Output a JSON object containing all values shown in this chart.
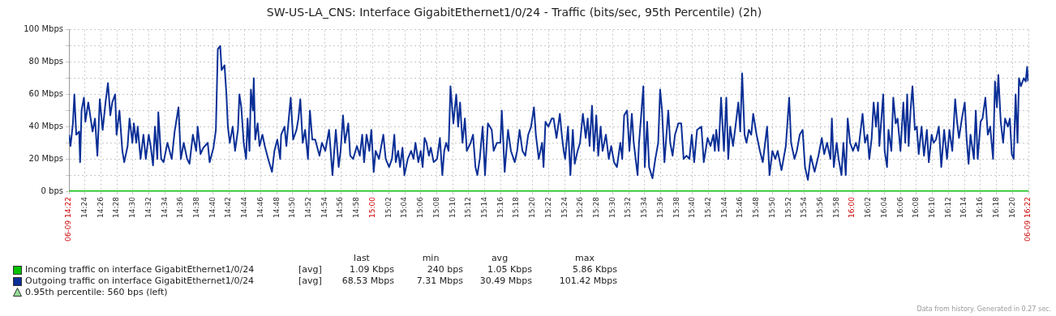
{
  "chart_data": {
    "type": "line",
    "title": "SW-US-LA_CNS: Interface GigabitEthernet1/0/24 - Traffic (bits/sec, 95th Percentile) (2h)",
    "xlim": [
      14.3667,
      16.3667
    ],
    "xticks": [
      {
        "value": 14.3667,
        "label": "06-09 14:22"
      },
      {
        "value": 14.4,
        "label": "14:24"
      },
      {
        "value": 14.4333,
        "label": "14:26"
      },
      {
        "value": 14.4667,
        "label": "14:28"
      },
      {
        "value": 14.5,
        "label": "14:30"
      },
      {
        "value": 14.5333,
        "label": "14:32"
      },
      {
        "value": 14.5667,
        "label": "14:34"
      },
      {
        "value": 14.6,
        "label": "14:36"
      },
      {
        "value": 14.6333,
        "label": "14:38"
      },
      {
        "value": 14.6667,
        "label": "14:40"
      },
      {
        "value": 14.7,
        "label": "14:42"
      },
      {
        "value": 14.7333,
        "label": "14:44"
      },
      {
        "value": 14.7667,
        "label": "14:46"
      },
      {
        "value": 14.8,
        "label": "14:48"
      },
      {
        "value": 14.8333,
        "label": "14:50"
      },
      {
        "value": 14.8667,
        "label": "14:52"
      },
      {
        "value": 14.9,
        "label": "14:54"
      },
      {
        "value": 14.9333,
        "label": "14:56"
      },
      {
        "value": 14.9667,
        "label": "14:58"
      },
      {
        "value": 15,
        "label": "15:00"
      },
      {
        "value": 15.0333,
        "label": "15:02"
      },
      {
        "value": 15.0667,
        "label": "15:04"
      },
      {
        "value": 15.1,
        "label": "15:06"
      },
      {
        "value": 15.1333,
        "label": "15:08"
      },
      {
        "value": 15.1667,
        "label": "15:10"
      },
      {
        "value": 15.2,
        "label": "15:12"
      },
      {
        "value": 15.2333,
        "label": "15:14"
      },
      {
        "value": 15.2667,
        "label": "15:16"
      },
      {
        "value": 15.3,
        "label": "15:18"
      },
      {
        "value": 15.3333,
        "label": "15:20"
      },
      {
        "value": 15.3667,
        "label": "15:22"
      },
      {
        "value": 15.4,
        "label": "15:24"
      },
      {
        "value": 15.4333,
        "label": "15:26"
      },
      {
        "value": 15.4667,
        "label": "15:28"
      },
      {
        "value": 15.5,
        "label": "15:30"
      },
      {
        "value": 15.5333,
        "label": "15:32"
      },
      {
        "value": 15.5667,
        "label": "15:34"
      },
      {
        "value": 15.6,
        "label": "15:36"
      },
      {
        "value": 15.6333,
        "label": "15:38"
      },
      {
        "value": 15.6667,
        "label": "15:40"
      },
      {
        "value": 15.7,
        "label": "15:42"
      },
      {
        "value": 15.7333,
        "label": "15:44"
      },
      {
        "value": 15.7667,
        "label": "15:46"
      },
      {
        "value": 15.8,
        "label": "15:48"
      },
      {
        "value": 15.8333,
        "label": "15:50"
      },
      {
        "value": 15.8667,
        "label": "15:52"
      },
      {
        "value": 15.9,
        "label": "15:54"
      },
      {
        "value": 15.9333,
        "label": "15:56"
      },
      {
        "value": 15.9667,
        "label": "15:58"
      },
      {
        "value": 16,
        "label": "16:00"
      },
      {
        "value": 16.0333,
        "label": "16:02"
      },
      {
        "value": 16.0667,
        "label": "16:04"
      },
      {
        "value": 16.1,
        "label": "16:06"
      },
      {
        "value": 16.1333,
        "label": "16:08"
      },
      {
        "value": 16.1667,
        "label": "16:10"
      },
      {
        "value": 16.2,
        "label": "16:12"
      },
      {
        "value": 16.2333,
        "label": "16:14"
      },
      {
        "value": 16.2667,
        "label": "16:16"
      },
      {
        "value": 16.3,
        "label": "16:18"
      },
      {
        "value": 16.3333,
        "label": "16:20"
      },
      {
        "value": 16.3667,
        "label": "06-09 16:22"
      }
    ],
    "ylim": [
      0,
      100
    ],
    "yticks": [
      {
        "value": 0,
        "label": "0 bps"
      },
      {
        "value": 10,
        "label": null
      },
      {
        "value": 20,
        "label": "20 Mbps"
      },
      {
        "value": 30,
        "label": null
      },
      {
        "value": 40,
        "label": "40 Mbps"
      },
      {
        "value": 50,
        "label": null
      },
      {
        "value": 60,
        "label": "60 Mbps"
      },
      {
        "value": 70,
        "label": null
      },
      {
        "value": 80,
        "label": "80 Mbps"
      },
      {
        "value": 90,
        "label": null
      },
      {
        "value": 100,
        "label": "100 Mbps"
      }
    ],
    "grid": true,
    "legend": "bottom",
    "series": [
      {
        "name": "Incoming traffic on interface GigabitEthernet1/0/24",
        "color": "#00c000",
        "x": [
          14.3667,
          16.3667
        ],
        "values": [
          0,
          0
        ]
      },
      {
        "name": "Outgoing traffic on interface GigabitEthernet1/0/24",
        "color": "#0b2f96",
        "x": [
          14.367,
          14.37,
          14.375,
          14.378,
          14.382,
          14.388,
          14.39,
          14.393,
          14.398,
          14.401,
          14.407,
          14.412,
          14.416,
          14.421,
          14.426,
          14.431,
          14.437,
          14.443,
          14.448,
          14.453,
          14.457,
          14.463,
          14.466,
          14.472,
          14.478,
          14.482,
          14.489,
          14.493,
          14.499,
          14.502,
          14.507,
          14.51,
          14.516,
          14.522,
          14.527,
          14.533,
          14.537,
          14.542,
          14.546,
          14.551,
          14.553,
          14.559,
          14.564,
          14.572,
          14.581,
          14.587,
          14.595,
          14.6,
          14.606,
          14.613,
          14.618,
          14.625,
          14.632,
          14.635,
          14.641,
          14.647,
          14.656,
          14.66,
          14.668,
          14.673,
          14.677,
          14.682,
          14.685,
          14.691,
          14.695,
          14.698,
          14.702,
          14.708,
          14.713,
          14.719,
          14.722,
          14.726,
          14.731,
          14.736,
          14.739,
          14.743,
          14.746,
          14.75,
          14.752,
          14.755,
          14.76,
          14.764,
          14.77,
          14.775,
          14.782,
          14.79,
          14.795,
          14.801,
          14.807,
          14.809,
          14.816,
          14.82,
          14.824,
          14.829,
          14.834,
          14.841,
          14.845,
          14.849,
          14.854,
          14.859,
          14.865,
          14.869,
          14.874,
          14.88,
          14.889,
          14.894,
          14.901,
          14.909,
          14.916,
          14.923,
          14.929,
          14.933,
          14.938,
          14.942,
          14.949,
          14.953,
          14.959,
          14.967,
          14.973,
          14.978,
          14.982,
          14.987,
          14.993,
          14.997,
          15.002,
          15.006,
          15.013,
          15.022,
          15.027,
          15.034,
          15.04,
          15.045,
          15.048,
          15.053,
          15.057,
          15.062,
          15.066,
          15.073,
          15.08,
          15.085,
          15.089,
          15.095,
          15.1,
          15.104,
          15.108,
          15.112,
          15.117,
          15.121,
          15.127,
          15.134,
          15.14,
          15.145,
          15.149,
          15.153,
          15.158,
          15.162,
          15.168,
          15.174,
          15.178,
          15.182,
          15.187,
          15.192,
          15.196,
          15.204,
          15.209,
          15.214,
          15.218,
          15.223,
          15.229,
          15.234,
          15.24,
          15.248,
          15.252,
          15.259,
          15.266,
          15.269,
          15.275,
          15.282,
          15.288,
          15.296,
          15.301,
          15.306,
          15.312,
          15.318,
          15.324,
          15.33,
          15.336,
          15.34,
          15.346,
          15.353,
          15.356,
          15.36,
          15.366,
          15.373,
          15.377,
          15.383,
          15.39,
          15.394,
          15.398,
          15.401,
          15.407,
          15.412,
          15.417,
          15.421,
          15.427,
          15.432,
          15.438,
          15.444,
          15.448,
          15.452,
          15.457,
          15.461,
          15.466,
          15.47,
          15.475,
          15.479,
          15.486,
          15.492,
          15.497,
          15.503,
          15.509,
          15.516,
          15.52,
          15.524,
          15.53,
          15.535,
          15.54,
          15.544,
          15.552,
          15.555,
          15.559,
          15.564,
          15.567,
          15.572,
          15.576,
          15.583,
          15.589,
          15.595,
          15.599,
          15.603,
          15.608,
          15.616,
          15.62,
          15.625,
          15.63,
          15.637,
          15.643,
          15.648,
          15.654,
          15.66,
          15.665,
          15.67,
          15.676,
          15.685,
          15.69,
          15.698,
          15.704,
          15.71,
          15.713,
          15.716,
          15.721,
          15.726,
          15.732,
          15.737,
          15.741,
          15.745,
          15.751,
          15.756,
          15.762,
          15.766,
          15.77,
          15.775,
          15.779,
          15.784,
          15.789,
          15.793,
          15.8,
          15.807,
          15.813,
          15.822,
          15.827,
          15.833,
          15.839,
          15.844,
          15.852,
          15.861,
          15.868,
          15.872,
          15.879,
          15.884,
          15.89,
          15.896,
          15.901,
          15.907,
          15.913,
          15.921,
          15.929,
          15.936,
          15.941,
          15.947,
          15.954,
          15.957,
          15.961,
          15.967,
          15.971,
          15.977,
          15.981,
          15.986,
          15.99,
          15.995,
          16.001,
          16.007,
          16.012,
          16.021,
          16.026,
          16.031,
          16.035,
          16.04,
          16.044,
          16.049,
          16.053,
          16.056,
          16.064,
          16.067,
          16.072,
          16.075,
          16.081,
          16.085,
          16.09,
          16.094,
          16.1,
          16.106,
          16.11,
          16.114,
          16.117,
          16.121,
          16.125,
          16.13,
          16.134,
          16.138,
          16.144,
          16.149,
          16.155,
          16.159,
          16.165,
          16.169,
          16.174,
          16.18,
          16.185,
          16.191,
          16.197,
          16.202,
          16.208,
          16.214,
          16.218,
          16.222,
          16.228,
          16.234,
          16.238,
          16.242,
          16.246,
          16.253,
          16.257,
          16.261,
          16.267,
          16.271,
          16.277,
          16.282,
          16.287,
          16.293,
          16.297,
          16.301,
          16.304,
          16.309,
          16.314,
          16.318,
          16.324,
          16.328,
          16.332,
          16.336,
          16.34,
          16.344,
          16.347,
          16.351,
          16.357,
          16.361,
          16.364,
          16.366
        ],
        "values": [
          35,
          28,
          42,
          60,
          35,
          37,
          18,
          50,
          58,
          43,
          55,
          45,
          37,
          45,
          22,
          57,
          38,
          55,
          67,
          47,
          55,
          60,
          35,
          50,
          25,
          18,
          28,
          45,
          30,
          42,
          30,
          40,
          20,
          35,
          20,
          35,
          28,
          16,
          40,
          20,
          49,
          20,
          18,
          30,
          20,
          37,
          52,
          20,
          30,
          20,
          17,
          35,
          25,
          40,
          23,
          27,
          30,
          18,
          27,
          38,
          88,
          90,
          75,
          78,
          60,
          40,
          30,
          40,
          25,
          38,
          60,
          52,
          30,
          20,
          45,
          25,
          63,
          50,
          70,
          32,
          42,
          28,
          35,
          28,
          20,
          12,
          25,
          32,
          20,
          35,
          40,
          28,
          42,
          58,
          32,
          38,
          45,
          57,
          30,
          38,
          20,
          50,
          32,
          32,
          22,
          30,
          25,
          38,
          10,
          38,
          15,
          25,
          47,
          30,
          42,
          22,
          20,
          28,
          22,
          35,
          18,
          35,
          25,
          38,
          12,
          25,
          20,
          35,
          20,
          15,
          20,
          35,
          18,
          25,
          15,
          27,
          10,
          20,
          25,
          20,
          30,
          18,
          25,
          15,
          33,
          30,
          22,
          27,
          18,
          20,
          33,
          10,
          25,
          30,
          25,
          65,
          42,
          60,
          40,
          55,
          30,
          45,
          25,
          30,
          35,
          15,
          10,
          20,
          40,
          10,
          42,
          38,
          25,
          30,
          30,
          50,
          12,
          38,
          25,
          18,
          25,
          38,
          25,
          22,
          35,
          40,
          52,
          35,
          20,
          30,
          15,
          43,
          40,
          45,
          45,
          33,
          48,
          35,
          25,
          20,
          40,
          10,
          38,
          17,
          25,
          30,
          48,
          33,
          45,
          28,
          53,
          25,
          47,
          22,
          40,
          25,
          35,
          20,
          28,
          18,
          15,
          30,
          20,
          47,
          50,
          25,
          48,
          30,
          10,
          30,
          45,
          65,
          15,
          43,
          15,
          8,
          20,
          30,
          63,
          50,
          18,
          50,
          30,
          22,
          35,
          42,
          42,
          20,
          22,
          20,
          35,
          18,
          38,
          40,
          18,
          33,
          28,
          35,
          25,
          38,
          25,
          58,
          25,
          58,
          20,
          40,
          28,
          40,
          55,
          37,
          73,
          35,
          30,
          38,
          35,
          48,
          35,
          25,
          18,
          40,
          10,
          25,
          20,
          25,
          13,
          28,
          58,
          30,
          20,
          25,
          35,
          38,
          15,
          7,
          22,
          12,
          22,
          33,
          23,
          30,
          20,
          45,
          15,
          30,
          20,
          10,
          30,
          10,
          45,
          30,
          25,
          30,
          25,
          48,
          30,
          35,
          20,
          33,
          55,
          40,
          55,
          28,
          60,
          25,
          15,
          38,
          25,
          58,
          42,
          45,
          25,
          55,
          30,
          60,
          28,
          50,
          65,
          38,
          40,
          23,
          40,
          22,
          38,
          18,
          35,
          30,
          32,
          40,
          15,
          38,
          20,
          38,
          25,
          57,
          43,
          33,
          45,
          55,
          32,
          17,
          35,
          20,
          50,
          20,
          43,
          45,
          58,
          35,
          40,
          20,
          68,
          52,
          72,
          43,
          30,
          45,
          40,
          45,
          23,
          20,
          60,
          30,
          70,
          65,
          70,
          68,
          77,
          68
        ]
      }
    ],
    "ref_lines": [
      {
        "axis": "y",
        "value": 0.00056,
        "label": "0.95th percentile: 560 bps (left)",
        "color": "#96dc96"
      }
    ],
    "annotations": [
      "last",
      "min",
      "avg",
      "max",
      "[avg]",
      "1.09 Kbps",
      "240 bps",
      "1.05 Kbps",
      "5.86 Kbps",
      "[avg]",
      "68.53 Mbps",
      "7.31 Mbps",
      "30.49 Mbps",
      "101.42 Mbps",
      "Data from history. Generated in 0.27 sec."
    ]
  }
}
